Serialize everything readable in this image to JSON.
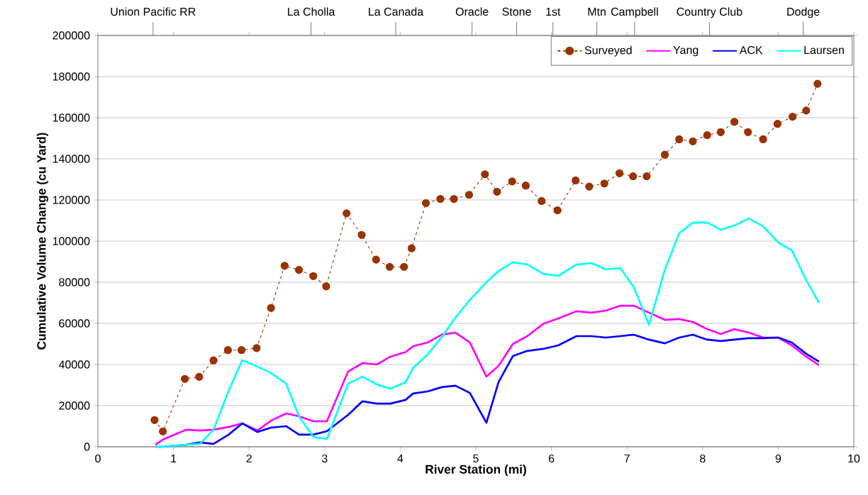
{
  "chart_data": {
    "type": "line",
    "xlabel": "River Station (mi)",
    "ylabel": "Cumulative Volume Change (cu Yard)",
    "xlim": [
      0,
      10
    ],
    "xticks": [
      0,
      1,
      2,
      3,
      4,
      5,
      6,
      7,
      8,
      9,
      10
    ],
    "ylim": [
      0,
      200000
    ],
    "yticks": [
      0,
      20000,
      40000,
      60000,
      80000,
      100000,
      120000,
      140000,
      160000,
      180000,
      200000
    ],
    "ref_lines": [
      {
        "axis": "x",
        "value": 0.73,
        "label": "Union Pacific RR"
      },
      {
        "axis": "x",
        "value": 2.82,
        "label": "La Cholla"
      },
      {
        "axis": "x",
        "value": 3.94,
        "label": "La Canada"
      },
      {
        "axis": "x",
        "value": 4.95,
        "label": "Oracle"
      },
      {
        "axis": "x",
        "value": 5.54,
        "label": "Stone"
      },
      {
        "axis": "x",
        "value": 6.02,
        "label": "1st"
      },
      {
        "axis": "x",
        "value": 6.6,
        "label": "Mtn"
      },
      {
        "axis": "x",
        "value": 7.1,
        "label": "Campbell"
      },
      {
        "axis": "x",
        "value": 8.09,
        "label": "Country Club"
      },
      {
        "axis": "x",
        "value": 9.33,
        "label": "Dodge"
      }
    ],
    "grid": "y",
    "legend": "top right",
    "x": [
      0.76,
      0.86,
      1.17,
      1.35,
      1.53,
      1.73,
      1.91,
      2.11,
      2.29,
      2.49,
      2.66,
      2.85,
      3.03,
      3.31,
      3.5,
      3.69,
      3.87,
      4.07,
      4.17,
      4.36,
      4.55,
      4.73,
      4.92,
      5.14,
      5.3,
      5.49,
      5.68,
      5.89,
      6.09,
      6.33,
      6.53,
      6.72,
      6.91,
      7.09,
      7.29,
      7.5,
      7.69,
      7.87,
      8.06,
      8.24,
      8.42,
      8.61,
      8.8,
      9.0,
      9.18,
      9.37,
      9.54
    ],
    "series": [
      {
        "name": "Surveyed",
        "color": "#993300",
        "marker": "circle",
        "line_style": "dashed",
        "x": [
          0.75,
          0.86,
          1.15,
          1.34,
          1.53,
          1.72,
          1.9,
          2.1,
          2.29,
          2.47,
          2.66,
          2.85,
          3.02,
          3.29,
          3.49,
          3.68,
          3.86,
          4.05,
          4.15,
          4.34,
          4.53,
          4.71,
          4.91,
          5.12,
          5.28,
          5.48,
          5.66,
          5.87,
          6.08,
          6.32,
          6.5,
          6.7,
          6.9,
          7.08,
          7.26,
          7.5,
          7.69,
          7.87,
          8.06,
          8.24,
          8.42,
          8.6,
          8.8,
          8.99,
          9.19,
          9.37,
          9.52
        ],
        "values": [
          13000,
          7500,
          33000,
          34000,
          42000,
          47000,
          47000,
          48000,
          67500,
          88000,
          86000,
          83000,
          78000,
          113500,
          103000,
          91000,
          87500,
          87500,
          96500,
          118500,
          120500,
          120500,
          122500,
          132500,
          124000,
          129000,
          127000,
          119500,
          115000,
          129500,
          126500,
          128000,
          133000,
          131500,
          131500,
          142000,
          149500,
          148500,
          151500,
          153000,
          158000,
          153000,
          149500,
          157000,
          160500,
          163500,
          176500
        ]
      },
      {
        "name": "Yang",
        "color": "#ff00ff",
        "marker": "none",
        "line_style": "solid",
        "values": [
          1000,
          3500,
          8300,
          7900,
          8300,
          9600,
          11400,
          7900,
          12700,
          16200,
          14800,
          12400,
          12400,
          36600,
          40700,
          40000,
          43800,
          46000,
          48900,
          50700,
          54500,
          55500,
          50700,
          34100,
          39300,
          50000,
          53800,
          59700,
          62400,
          65900,
          65200,
          66200,
          68600,
          68600,
          65200,
          61700,
          62100,
          60700,
          57200,
          54800,
          57200,
          55500,
          53100,
          53100,
          49300,
          43800,
          39700
        ]
      },
      {
        "name": "ACK",
        "color": "#0000ff",
        "marker": "none",
        "line_style": "solid",
        "values": [
          0,
          0,
          1000,
          2100,
          1400,
          5900,
          11400,
          7200,
          9300,
          10000,
          5900,
          5900,
          7600,
          15500,
          22100,
          21000,
          21000,
          22800,
          25900,
          26900,
          29000,
          29700,
          26200,
          11700,
          31400,
          44100,
          46600,
          47600,
          49300,
          53800,
          53800,
          53100,
          53800,
          54500,
          52100,
          50300,
          53100,
          54500,
          52100,
          51400,
          52100,
          52800,
          52800,
          53100,
          50700,
          45200,
          41400
        ]
      },
      {
        "name": "Laursen",
        "color": "#00ffff",
        "marker": "none",
        "line_style": "solid",
        "values": [
          0,
          0,
          1000,
          1400,
          8300,
          27200,
          42100,
          39000,
          35900,
          30700,
          14800,
          4800,
          3800,
          30700,
          34100,
          30300,
          28300,
          31400,
          38300,
          44800,
          53400,
          62800,
          71400,
          80000,
          85500,
          89700,
          88600,
          84100,
          83100,
          88600,
          89300,
          86200,
          86900,
          77600,
          59300,
          86200,
          103800,
          109000,
          109000,
          105500,
          107600,
          111000,
          107200,
          99300,
          95500,
          81000,
          70000
        ]
      }
    ]
  }
}
